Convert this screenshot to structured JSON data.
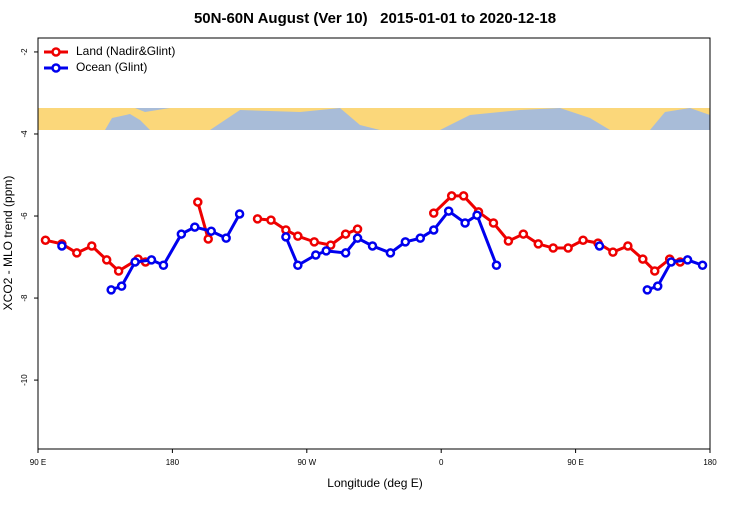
{
  "chart_data": {
    "type": "line",
    "title": "50N-60N August (Ver 10)   2015-01-01 to 2020-12-18",
    "x_label": "Longitude (deg E)",
    "y_label": "XCO2 - MLO trend (ppm)",
    "xlim": [
      90,
      540
    ],
    "xticks": [
      {
        "value": 90,
        "label": "90 E"
      },
      {
        "value": 180,
        "label": "180"
      },
      {
        "value": 270,
        "label": "90 W"
      },
      {
        "value": 360,
        "label": "0"
      },
      {
        "value": 450,
        "label": "90 E"
      },
      {
        "value": 540,
        "label": "180"
      }
    ],
    "ylim": [
      -11.68,
      -1.66
    ],
    "yticks": [
      -2,
      -4,
      -6,
      -8,
      -10
    ],
    "legend": "top-left",
    "series": [
      {
        "name": "Land (Nadir&Glint)",
        "color": "#ee0000",
        "x": [
          95,
          106,
          116,
          126,
          136,
          144,
          157,
          162,
          null,
          197,
          204,
          null,
          237,
          246,
          256,
          264,
          275,
          286,
          296,
          304,
          null,
          355,
          367,
          375,
          385,
          395,
          405,
          415,
          425,
          435,
          445,
          455,
          465,
          475,
          485,
          495,
          503,
          513,
          520
        ],
        "values": [
          -6.59,
          -6.68,
          -6.9,
          -6.73,
          -7.07,
          -7.34,
          -7.05,
          -7.12,
          null,
          -5.66,
          -6.56,
          null,
          -6.07,
          -6.1,
          -6.34,
          -6.49,
          -6.63,
          -6.71,
          -6.44,
          -6.32,
          null,
          -5.93,
          -5.51,
          -5.51,
          -5.9,
          -6.17,
          -6.61,
          -6.44,
          -6.68,
          -6.78,
          -6.78,
          -6.59,
          -6.66,
          -6.88,
          -6.73,
          -7.05,
          -7.34,
          -7.05,
          -7.12
        ]
      },
      {
        "name": "Ocean (Glint)",
        "color": "#0000ee",
        "x": [
          106,
          null,
          139,
          146,
          155,
          166,
          174,
          186,
          195,
          206,
          216,
          225,
          null,
          256,
          264,
          276,
          283,
          296,
          304,
          314,
          326,
          336,
          346,
          355,
          365,
          376,
          384,
          397,
          null,
          466,
          null,
          498,
          505,
          514,
          525,
          535
        ],
        "values": [
          -6.73,
          null,
          -7.8,
          -7.71,
          -7.12,
          -7.07,
          -7.2,
          -6.44,
          -6.27,
          -6.37,
          -6.54,
          -5.95,
          null,
          -6.51,
          -7.2,
          -6.95,
          -6.85,
          -6.9,
          -6.54,
          -6.73,
          -6.9,
          -6.63,
          -6.54,
          -6.34,
          -5.88,
          -6.17,
          -5.98,
          -7.2,
          null,
          -6.73,
          null,
          -7.8,
          -7.71,
          -7.12,
          -7.07,
          -7.2
        ]
      }
    ]
  }
}
